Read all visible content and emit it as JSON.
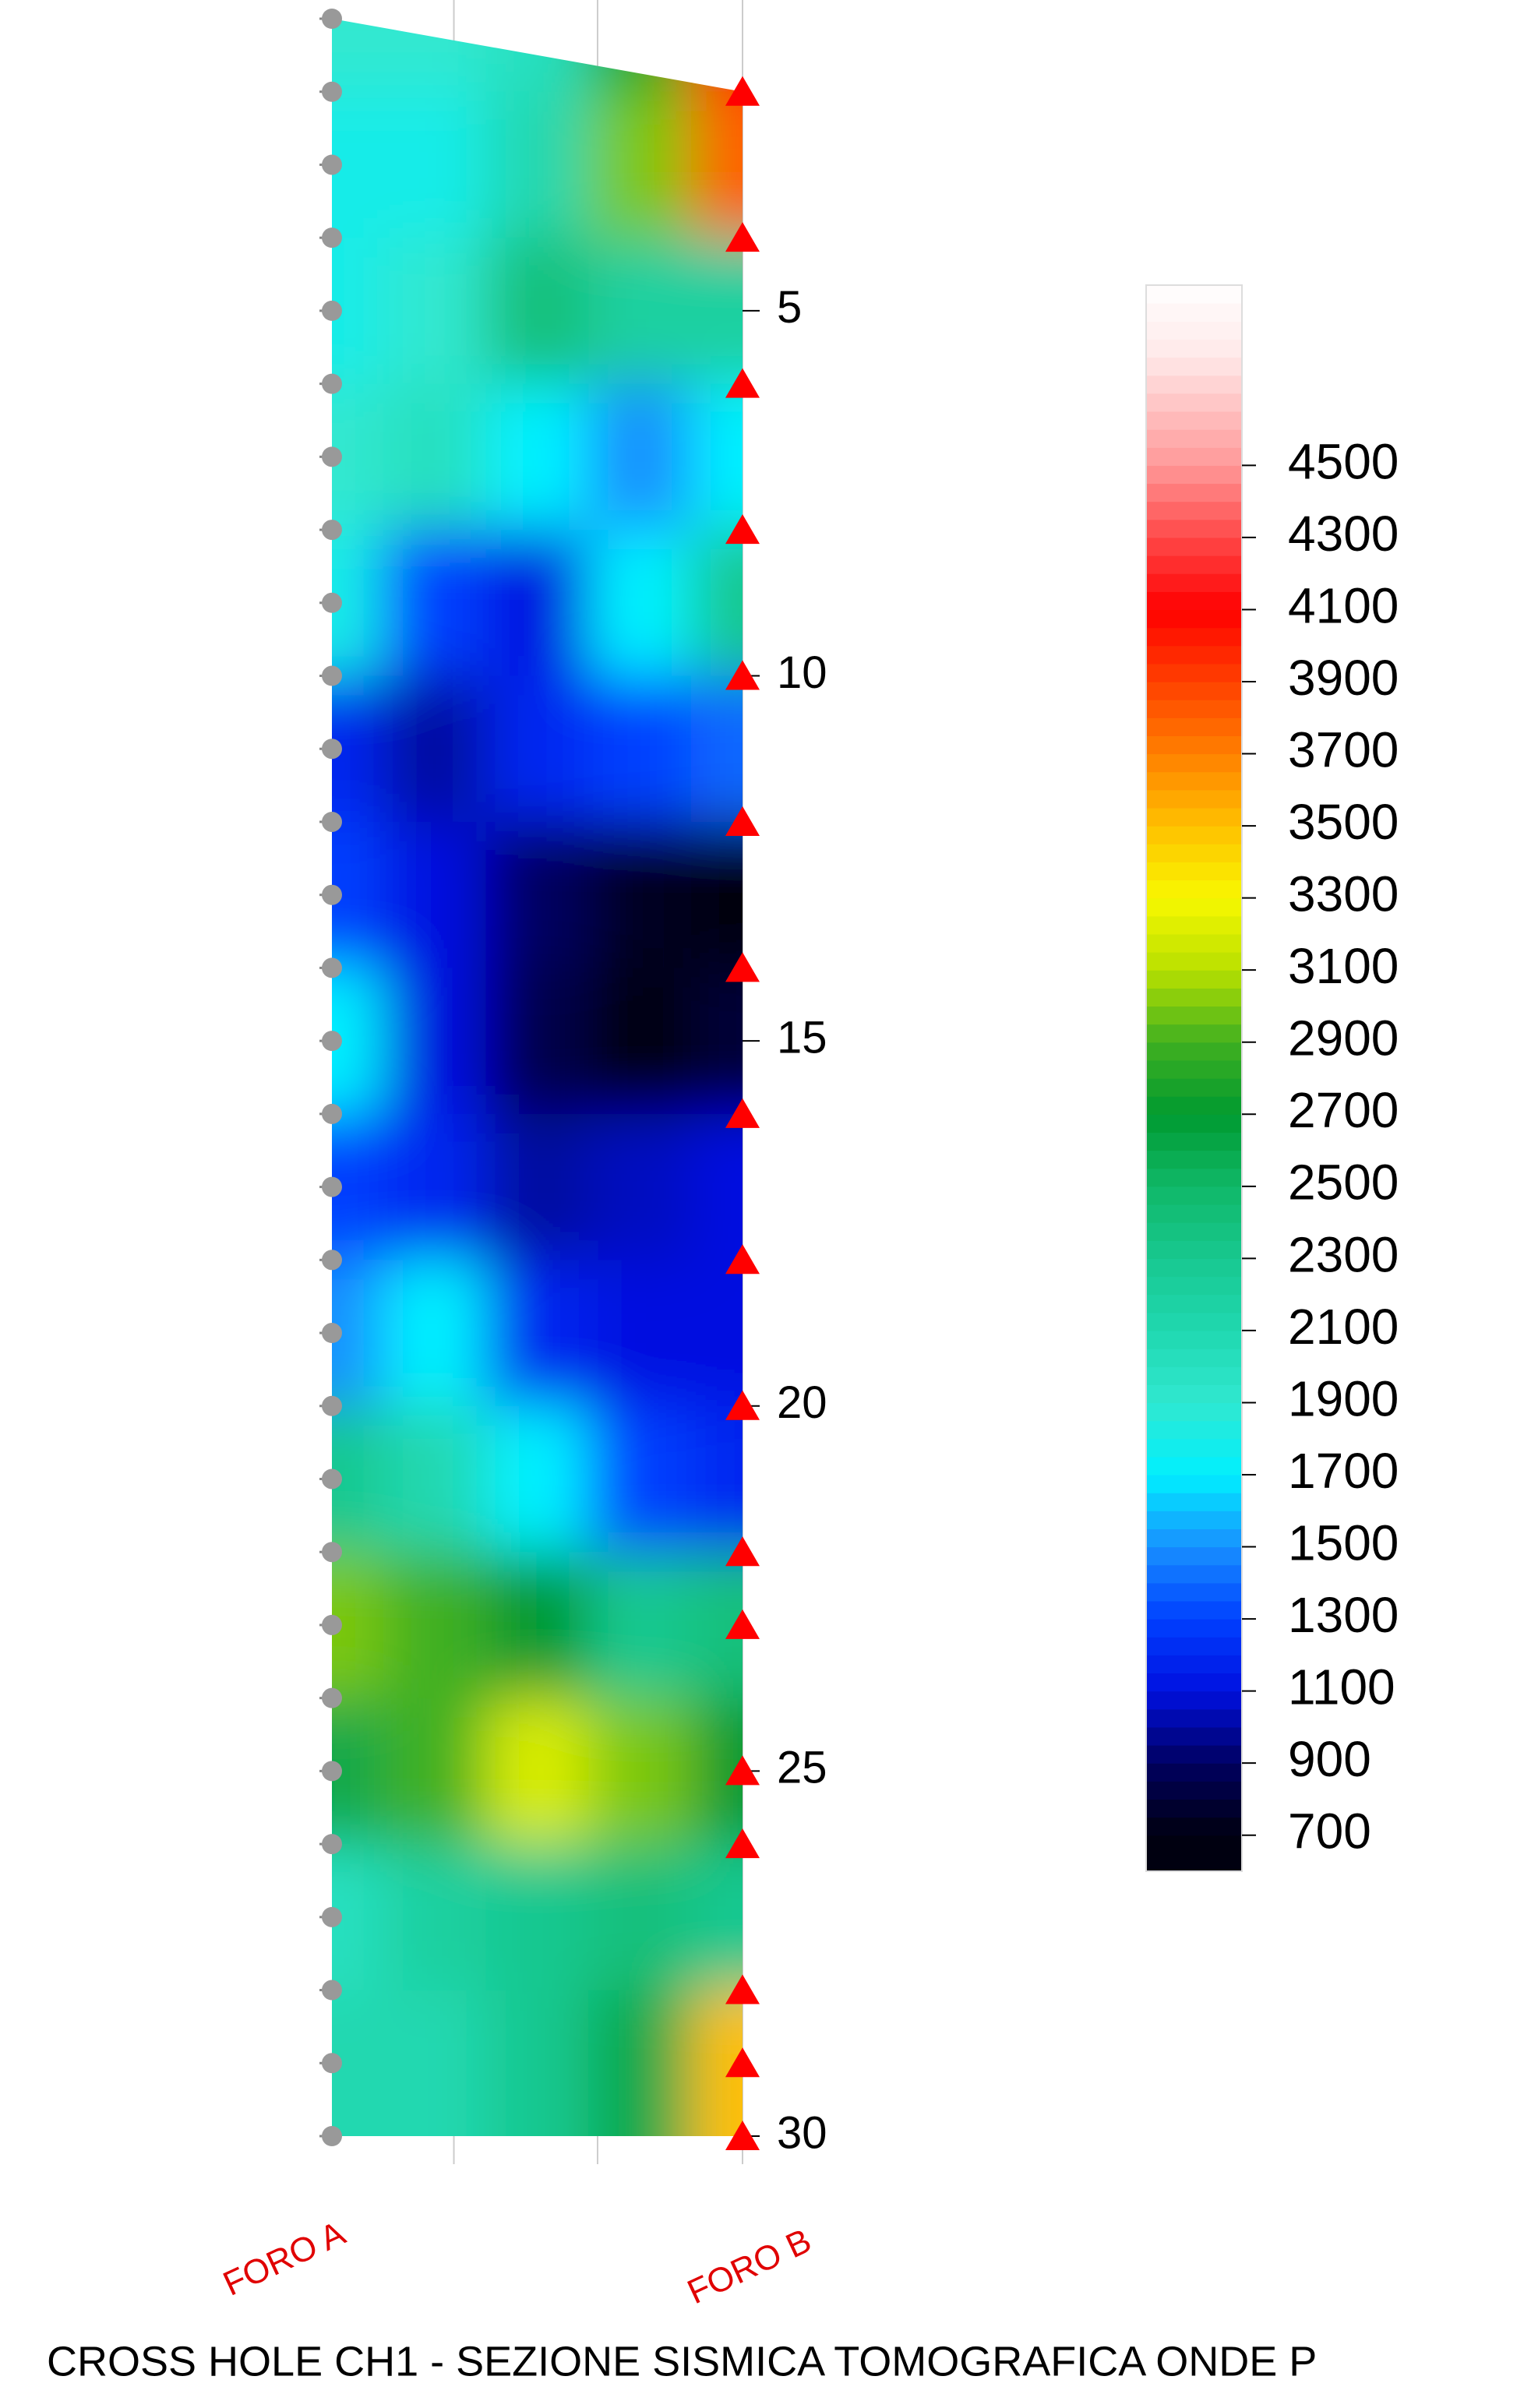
{
  "chart_data": {
    "type": "heatmap",
    "title": "CROSS HOLE CH1 - SEZIONE SISMICA TOMOGRAFICA ONDE P",
    "x_labels": [
      "FORO A",
      "FORO B"
    ],
    "ylim": [
      1,
      30
    ],
    "yticks": [
      5,
      10,
      15,
      20,
      25,
      30
    ],
    "y": [
      1,
      3,
      5,
      7,
      9,
      11,
      13,
      15,
      17,
      19,
      21,
      23,
      25,
      27,
      29
    ],
    "z": [
      [
        1900,
        1900,
        2000,
        2800,
        4000
      ],
      [
        1800,
        1800,
        2100,
        3000,
        3800
      ],
      [
        1800,
        1900,
        2400,
        2200,
        2200
      ],
      [
        1900,
        2000,
        1700,
        1500,
        1700
      ],
      [
        1800,
        1300,
        1100,
        1700,
        2300
      ],
      [
        1200,
        1000,
        1200,
        1300,
        1400
      ],
      [
        1300,
        1100,
        900,
        750,
        700
      ],
      [
        1700,
        1100,
        850,
        700,
        800
      ],
      [
        1300,
        1200,
        1000,
        1050,
        1100
      ],
      [
        1500,
        1700,
        1200,
        1100,
        1100
      ],
      [
        2300,
        2100,
        1700,
        1300,
        1200
      ],
      [
        3000,
        2900,
        2700,
        2300,
        2400
      ],
      [
        2600,
        2900,
        3200,
        3000,
        2700
      ],
      [
        2000,
        2200,
        2300,
        2400,
        2300
      ],
      [
        2100,
        2100,
        2300,
        2600,
        3500
      ]
    ],
    "zlim": [
      600,
      5000
    ],
    "zticks": [
      700,
      900,
      1100,
      1300,
      1500,
      1700,
      1900,
      2100,
      2300,
      2500,
      2700,
      2900,
      3100,
      3300,
      3500,
      3700,
      3900,
      4100,
      4300,
      4500
    ],
    "colorscale": [
      [
        700,
        "#000010"
      ],
      [
        900,
        "#000060"
      ],
      [
        1100,
        "#0010e0"
      ],
      [
        1300,
        "#0040ff"
      ],
      [
        1500,
        "#1890ff"
      ],
      [
        1700,
        "#00f0ff"
      ],
      [
        1900,
        "#30e8d0"
      ],
      [
        2100,
        "#20d8b0"
      ],
      [
        2300,
        "#18c890"
      ],
      [
        2500,
        "#10b868"
      ],
      [
        2700,
        "#009a30"
      ],
      [
        2900,
        "#40b020"
      ],
      [
        3100,
        "#b8e000"
      ],
      [
        3300,
        "#f8f800"
      ],
      [
        3500,
        "#ffc000"
      ],
      [
        3700,
        "#ff8000"
      ],
      [
        3900,
        "#ff4000"
      ],
      [
        4100,
        "#ff0000"
      ],
      [
        4300,
        "#ff4848"
      ],
      [
        4500,
        "#ff9898"
      ],
      [
        4800,
        "#ffe8e8"
      ],
      [
        5000,
        "#ffffff"
      ]
    ],
    "sources_depth": [
      1,
      2,
      3,
      4,
      5,
      6,
      7,
      8,
      9,
      10,
      11,
      12,
      13,
      14,
      15,
      16,
      17,
      18,
      19,
      20,
      21,
      22,
      23,
      24,
      25,
      26,
      27,
      28,
      29,
      30
    ],
    "receivers_depth": [
      2,
      4,
      6,
      8,
      10,
      12,
      14,
      16,
      18,
      20,
      22,
      23,
      25,
      26,
      28,
      29,
      30
    ]
  }
}
